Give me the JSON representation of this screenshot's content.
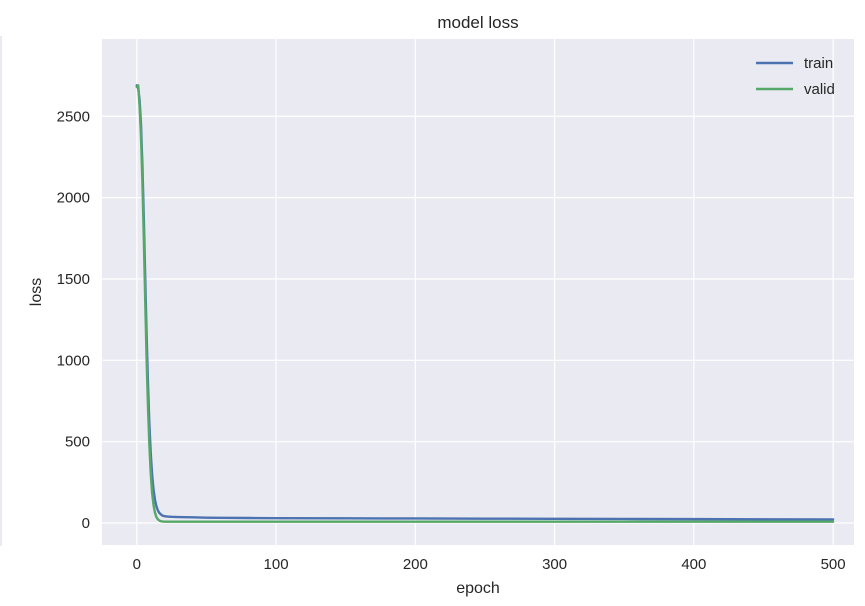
{
  "chart_data": {
    "type": "line",
    "title": "model loss",
    "xlabel": "epoch",
    "ylabel": "loss",
    "xlim": [
      -25,
      515
    ],
    "ylim": [
      -135,
      2975
    ],
    "xticks": [
      0,
      100,
      200,
      300,
      400,
      500
    ],
    "yticks": [
      0,
      500,
      1000,
      1500,
      2000,
      2500
    ],
    "grid": true,
    "legend_position": "top-right",
    "series": [
      {
        "name": "train",
        "color": "#4c72b0",
        "x": [
          0,
          1,
          2,
          3,
          4,
          5,
          6,
          7,
          8,
          9,
          10,
          11,
          12,
          13,
          14,
          15,
          16,
          17,
          18,
          19,
          20,
          22,
          25,
          30,
          40,
          50,
          60,
          80,
          100,
          150,
          200,
          250,
          300,
          350,
          400,
          450,
          500
        ],
        "values": [
          2690,
          2670,
          2600,
          2450,
          2200,
          1880,
          1520,
          1170,
          860,
          610,
          430,
          295,
          205,
          145,
          105,
          80,
          64,
          55,
          48,
          44,
          42,
          40,
          38,
          37,
          35,
          33,
          32,
          31,
          30,
          29,
          28,
          27,
          26,
          25,
          24,
          23,
          22
        ]
      },
      {
        "name": "valid",
        "color": "#55a868",
        "x": [
          0,
          1,
          2,
          3,
          4,
          5,
          6,
          7,
          8,
          9,
          10,
          11,
          12,
          13,
          14,
          15,
          16,
          17,
          18,
          19,
          20,
          22,
          25,
          30,
          40,
          50,
          60,
          80,
          100,
          150,
          200,
          250,
          300,
          350,
          400,
          450,
          500
        ],
        "values": [
          2680,
          2690,
          2560,
          2380,
          2100,
          1760,
          1380,
          1020,
          720,
          480,
          305,
          185,
          110,
          65,
          38,
          24,
          16,
          12,
          10,
          9,
          8,
          8,
          8,
          8,
          8,
          8,
          8,
          8,
          8,
          8,
          8,
          8,
          8,
          8,
          8,
          8,
          8
        ]
      }
    ]
  }
}
